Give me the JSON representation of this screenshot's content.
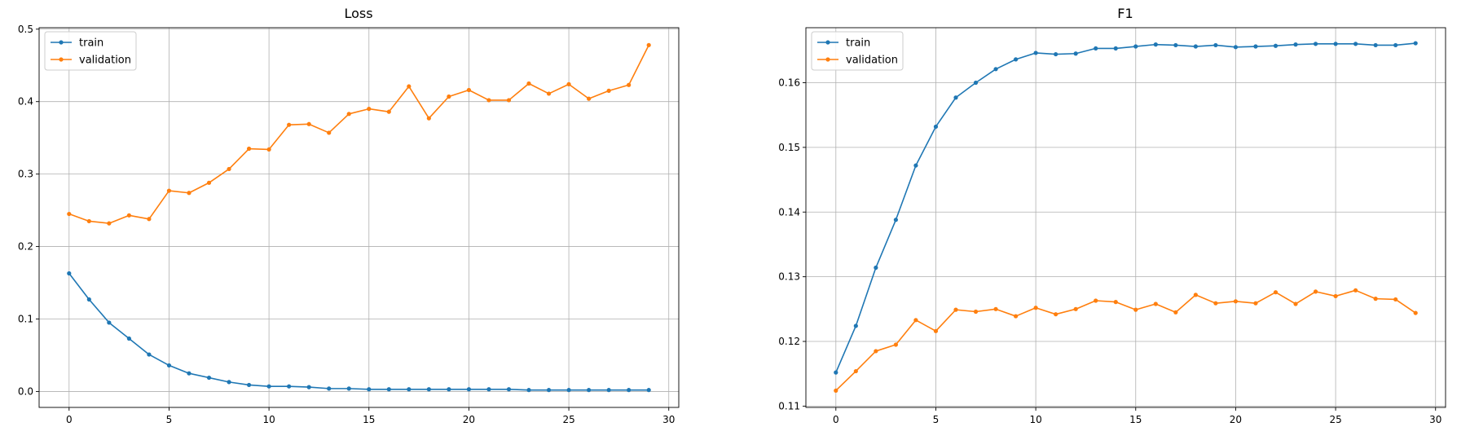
{
  "chart_data": [
    {
      "type": "line",
      "title": "Loss",
      "xlabel": "",
      "ylabel": "",
      "xlim": [
        -1.5,
        30.5
      ],
      "ylim": [
        -0.022,
        0.502
      ],
      "xticks": [
        0,
        5,
        10,
        15,
        20,
        25,
        30
      ],
      "yticks": [
        0.0,
        0.1,
        0.2,
        0.3,
        0.4,
        0.5
      ],
      "ytick_labels": [
        "0.0",
        "0.1",
        "0.2",
        "0.3",
        "0.4",
        "0.5"
      ],
      "grid": true,
      "legend": "top-left",
      "x": [
        0,
        1,
        2,
        3,
        4,
        5,
        6,
        7,
        8,
        9,
        10,
        11,
        12,
        13,
        14,
        15,
        16,
        17,
        18,
        19,
        20,
        21,
        22,
        23,
        24,
        25,
        26,
        27,
        28,
        29
      ],
      "series": [
        {
          "name": "train",
          "color": "#1f77b4",
          "values": [
            0.163,
            0.127,
            0.095,
            0.073,
            0.051,
            0.036,
            0.025,
            0.019,
            0.013,
            0.009,
            0.007,
            0.007,
            0.006,
            0.004,
            0.004,
            0.003,
            0.003,
            0.003,
            0.003,
            0.003,
            0.003,
            0.003,
            0.003,
            0.002,
            0.002,
            0.002,
            0.002,
            0.002,
            0.002,
            0.002
          ]
        },
        {
          "name": "validation",
          "color": "#ff7f0e",
          "values": [
            0.245,
            0.235,
            0.232,
            0.243,
            0.238,
            0.277,
            0.274,
            0.288,
            0.307,
            0.335,
            0.334,
            0.368,
            0.369,
            0.357,
            0.383,
            0.39,
            0.386,
            0.421,
            0.377,
            0.407,
            0.416,
            0.402,
            0.402,
            0.425,
            0.411,
            0.424,
            0.404,
            0.415,
            0.423,
            0.478
          ]
        }
      ]
    },
    {
      "type": "line",
      "title": "F1",
      "xlabel": "",
      "ylabel": "",
      "xlim": [
        -1.5,
        30.5
      ],
      "ylim": [
        0.1098,
        0.1685
      ],
      "xticks": [
        0,
        5,
        10,
        15,
        20,
        25,
        30
      ],
      "yticks": [
        0.11,
        0.12,
        0.13,
        0.14,
        0.15,
        0.16
      ],
      "ytick_labels": [
        "0.11",
        "0.12",
        "0.13",
        "0.14",
        "0.15",
        "0.16"
      ],
      "grid": true,
      "legend": "top-left",
      "x": [
        0,
        1,
        2,
        3,
        4,
        5,
        6,
        7,
        8,
        9,
        10,
        11,
        12,
        13,
        14,
        15,
        16,
        17,
        18,
        19,
        20,
        21,
        22,
        23,
        24,
        25,
        26,
        27,
        28,
        29
      ],
      "series": [
        {
          "name": "train",
          "color": "#1f77b4",
          "values": [
            0.1152,
            0.1224,
            0.1314,
            0.1388,
            0.1472,
            0.1532,
            0.1577,
            0.16,
            0.1621,
            0.1636,
            0.1646,
            0.1644,
            0.1645,
            0.1653,
            0.1653,
            0.1656,
            0.1659,
            0.1658,
            0.1656,
            0.1658,
            0.1655,
            0.1656,
            0.1657,
            0.1659,
            0.166,
            0.166,
            0.166,
            0.1658,
            0.1658,
            0.1661
          ]
        },
        {
          "name": "validation",
          "color": "#ff7f0e",
          "values": [
            0.1124,
            0.1154,
            0.1185,
            0.1195,
            0.1233,
            0.1216,
            0.1249,
            0.1246,
            0.125,
            0.1239,
            0.1252,
            0.1242,
            0.125,
            0.1263,
            0.1261,
            0.1249,
            0.1258,
            0.1245,
            0.1272,
            0.1259,
            0.1262,
            0.1259,
            0.1276,
            0.1258,
            0.1277,
            0.127,
            0.1279,
            0.1266,
            0.1265,
            0.1244
          ]
        }
      ]
    }
  ]
}
